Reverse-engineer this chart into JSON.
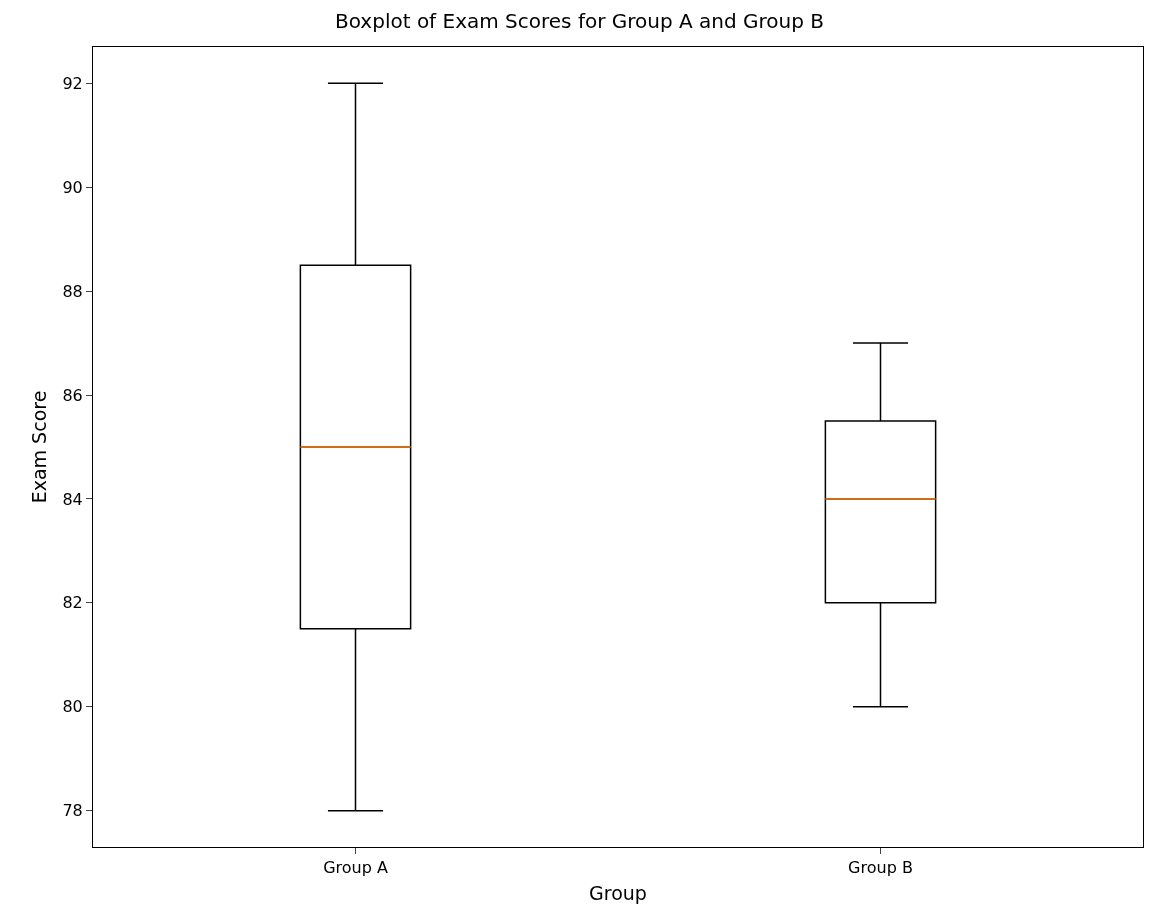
{
  "chart_data": {
    "type": "box",
    "title": "Boxplot of Exam Scores for Group A and Group B",
    "xlabel": "Group",
    "ylabel": "Exam Score",
    "categories": [
      "Group A",
      "Group B"
    ],
    "boxes": [
      {
        "low": 78,
        "q1": 81.5,
        "median": 85,
        "q3": 88.5,
        "high": 92
      },
      {
        "low": 80,
        "q1": 82,
        "median": 84,
        "q3": 85.5,
        "high": 87
      }
    ],
    "ylim": [
      77.3,
      92.7
    ],
    "yticks": [
      78,
      80,
      82,
      84,
      86,
      88,
      90,
      92
    ]
  }
}
